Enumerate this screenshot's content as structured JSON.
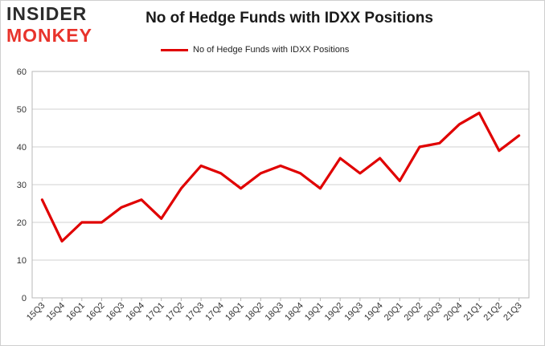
{
  "logo": {
    "line1": "INSIDER",
    "line2": "MONKEY"
  },
  "chart_data": {
    "type": "line",
    "title": "No of Hedge Funds with IDXX Positions",
    "xlabel": "",
    "ylabel": "",
    "ylim": [
      0,
      60
    ],
    "yticks": [
      0,
      10,
      20,
      30,
      40,
      50,
      60
    ],
    "grid": true,
    "legend": "top-center",
    "categories": [
      "15Q3",
      "15Q4",
      "16Q1",
      "16Q2",
      "16Q3",
      "16Q4",
      "17Q1",
      "17Q2",
      "17Q3",
      "17Q4",
      "18Q1",
      "18Q2",
      "18Q3",
      "18Q4",
      "19Q1",
      "19Q2",
      "19Q3",
      "19Q4",
      "20Q1",
      "20Q2",
      "20Q3",
      "20Q4",
      "21Q1",
      "21Q2",
      "21Q3"
    ],
    "series": [
      {
        "name": "No of Hedge Funds with IDXX Positions",
        "color": "#e00000",
        "values": [
          26,
          15,
          20,
          20,
          24,
          26,
          21,
          29,
          35,
          33,
          29,
          33,
          35,
          33,
          29,
          37,
          33,
          37,
          31,
          40,
          41,
          46,
          49,
          39,
          43
        ]
      }
    ]
  }
}
